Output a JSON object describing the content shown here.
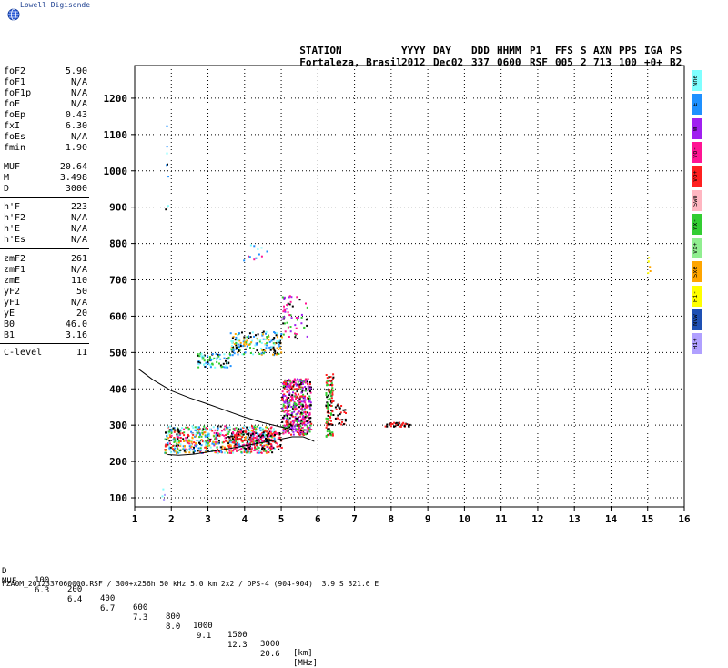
{
  "brand": {
    "name": "Lowell Digisonde"
  },
  "header": {
    "labels": [
      "STATION",
      "YYYY",
      "DAY",
      "DDD",
      "HHMM",
      "P1",
      "FFS",
      "S",
      "AXN",
      "PPS",
      "IGA",
      "PS"
    ],
    "station": "Fortaleza, Brasil",
    "year": "2012",
    "day": "Dec02",
    "ddd": "337",
    "hhmm": "0600",
    "p1": "RSF",
    "ffs": "005",
    "s": "2",
    "axn": "713",
    "pps": "100",
    "iga": "+0+",
    "ps": "B2"
  },
  "params": [
    {
      "name": "foF2",
      "value": "5.90"
    },
    {
      "name": "foF1",
      "value": "N/A"
    },
    {
      "name": "foF1p",
      "value": "N/A"
    },
    {
      "name": "foE",
      "value": "N/A"
    },
    {
      "name": "foEp",
      "value": "0.43"
    },
    {
      "name": "fxI",
      "value": "6.30"
    },
    {
      "name": "foEs",
      "value": "N/A"
    },
    {
      "name": "fmin",
      "value": "1.90"
    },
    {
      "name": "MUF",
      "value": "20.64"
    },
    {
      "name": "M",
      "value": "3.498"
    },
    {
      "name": "D",
      "value": "3000"
    },
    {
      "name": "h'F",
      "value": "223"
    },
    {
      "name": "h'F2",
      "value": "N/A"
    },
    {
      "name": "h'E",
      "value": "N/A"
    },
    {
      "name": "h'Es",
      "value": "N/A"
    },
    {
      "name": "zmF2",
      "value": "261"
    },
    {
      "name": "zmF1",
      "value": "N/A"
    },
    {
      "name": "zmE",
      "value": "110"
    },
    {
      "name": "yF2",
      "value": "50"
    },
    {
      "name": "yF1",
      "value": "N/A"
    },
    {
      "name": "yE",
      "value": "20"
    },
    {
      "name": "B0",
      "value": "46.0"
    },
    {
      "name": "B1",
      "value": "3.16"
    },
    {
      "name": "C-level",
      "value": "11"
    }
  ],
  "legend": [
    {
      "label": "Nne",
      "color": "#7fffff"
    },
    {
      "label": "E",
      "color": "#1e90ff"
    },
    {
      "label": "W",
      "color": "#a020f0"
    },
    {
      "label": "Vo-",
      "color": "#ff1493"
    },
    {
      "label": "Vo+",
      "color": "#ff2020"
    },
    {
      "label": "Swo",
      "color": "#ffb6c1"
    },
    {
      "label": "Vx-",
      "color": "#32cd32"
    },
    {
      "label": "Vx+",
      "color": "#90ee90"
    },
    {
      "label": "Sxe",
      "color": "#ffa500"
    },
    {
      "label": "Hi-",
      "color": "#ffff00"
    },
    {
      "label": "Nvw",
      "color": "#1e50b4"
    },
    {
      "label": "Hi+",
      "color": "#b0a0ff"
    }
  ],
  "muf_table": {
    "d_label": "D",
    "d_values": [
      "100",
      "200",
      "400",
      "600",
      "800",
      "1000",
      "1500",
      "3000"
    ],
    "d_unit": "[km]",
    "muf_label": "MUF",
    "muf_values": [
      "6.3",
      "6.4",
      "6.7",
      "7.3",
      "8.0",
      "9.1",
      "12.3",
      "20.6"
    ],
    "muf_unit": "[MHz]"
  },
  "footer": "FZA0M_2012337060000.RSF / 300+x256h 50 kHz 5.0 km 2x2 / DPS-4 (904-904)  3.9 S 321.6 E",
  "chart_data": {
    "type": "scatter",
    "title": "",
    "xlabel": "",
    "ylabel": "",
    "xlim": [
      1,
      16
    ],
    "ylim": [
      75,
      1290
    ],
    "x_ticks": [
      "1",
      "2",
      "3",
      "4",
      "5",
      "6",
      "7",
      "8",
      "9",
      "10",
      "11",
      "12",
      "13",
      "14",
      "15",
      "16"
    ],
    "y_ticks": [
      "100",
      "200",
      "300",
      "400",
      "500",
      "600",
      "700",
      "800",
      "900",
      "1000",
      "1100",
      "1200"
    ],
    "grid": true,
    "curves": [
      {
        "name": "",
        "points": [
          [
            1.9,
            219
          ],
          [
            2.2,
            217
          ],
          [
            2.6,
            220
          ],
          [
            3.0,
            226
          ],
          [
            3.5,
            234
          ],
          [
            4.0,
            243
          ],
          [
            4.5,
            252
          ],
          [
            4.9,
            260
          ],
          [
            5.3,
            268
          ],
          [
            5.6,
            268
          ],
          [
            5.8,
            260
          ],
          [
            5.9,
            255
          ]
        ]
      },
      {
        "name": "",
        "points": [
          [
            1.1,
            455
          ],
          [
            1.5,
            425
          ],
          [
            2.0,
            395
          ],
          [
            2.5,
            375
          ],
          [
            3.0,
            358
          ],
          [
            3.5,
            340
          ],
          [
            4.0,
            322
          ],
          [
            4.5,
            307
          ],
          [
            5.0,
            295
          ],
          [
            5.3,
            289
          ]
        ]
      }
    ],
    "clusters": [
      {
        "x": [
          1.8,
          4.8
        ],
        "y": [
          225,
          300
        ],
        "colors": [
          "#1e90ff",
          "#32cd32",
          "#000000",
          "#ff2020",
          "#ff1493",
          "#7fffff",
          "#ffa500"
        ],
        "n": 700
      },
      {
        "x": [
          3.6,
          5.0
        ],
        "y": [
          235,
          285
        ],
        "colors": [
          "#ff1493",
          "#ff2020",
          "#000000"
        ],
        "n": 150
      },
      {
        "x": [
          5.0,
          5.8
        ],
        "y": [
          275,
          430
        ],
        "colors": [
          "#ff1493",
          "#ff2020",
          "#32cd32",
          "#000000",
          "#a020f0"
        ],
        "n": 500
      },
      {
        "x": [
          6.2,
          6.4
        ],
        "y": [
          270,
          445
        ],
        "colors": [
          "#ff2020",
          "#32cd32",
          "#000000"
        ],
        "n": 120
      },
      {
        "x": [
          6.45,
          6.75
        ],
        "y": [
          300,
          360
        ],
        "colors": [
          "#ff2020",
          "#000000"
        ],
        "n": 30
      },
      {
        "x": [
          7.8,
          8.5
        ],
        "y": [
          298,
          310
        ],
        "colors": [
          "#ff2020",
          "#000000"
        ],
        "n": 40
      },
      {
        "x": [
          2.7,
          3.6
        ],
        "y": [
          460,
          500
        ],
        "colors": [
          "#000000",
          "#7fffff",
          "#32cd32",
          "#1e90ff"
        ],
        "n": 80
      },
      {
        "x": [
          3.6,
          5.0
        ],
        "y": [
          495,
          560
        ],
        "colors": [
          "#000000",
          "#7fffff",
          "#32cd32",
          "#1e90ff",
          "#ffa500"
        ],
        "n": 180
      },
      {
        "x": [
          5.0,
          5.7
        ],
        "y": [
          540,
          660
        ],
        "colors": [
          "#ff1493",
          "#a020f0",
          "#32cd32",
          "#000000"
        ],
        "n": 60
      },
      {
        "x": [
          3.9,
          4.6
        ],
        "y": [
          750,
          800
        ],
        "colors": [
          "#7fffff",
          "#ff1493",
          "#1e90ff"
        ],
        "n": 12
      },
      {
        "x": [
          1.8,
          1.9
        ],
        "y": [
          840,
          1140
        ],
        "colors": [
          "#7fffff",
          "#1e90ff",
          "#000000",
          "#ffa500"
        ],
        "n": 8
      },
      {
        "x": [
          14.95,
          15.05
        ],
        "y": [
          720,
          780
        ],
        "colors": [
          "#ffa500",
          "#ffff00"
        ],
        "n": 6
      },
      {
        "x": [
          1.7,
          1.8
        ],
        "y": [
          95,
          130
        ],
        "colors": [
          "#b0a0ff",
          "#7fffff"
        ],
        "n": 4
      }
    ]
  }
}
